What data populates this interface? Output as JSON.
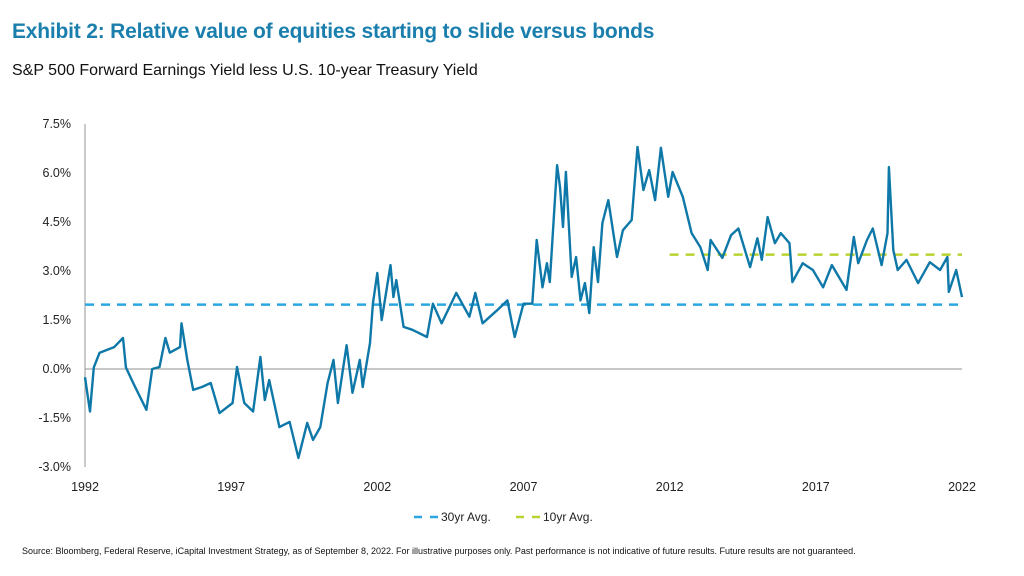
{
  "title": "Exhibit 2: Relative value of equities starting to slide versus bonds",
  "subtitle": "S&P 500 Forward Earnings Yield less U.S. 10-year Treasury Yield",
  "source": "Source: Bloomberg, Federal Reserve, iCapital Investment Strategy, as of September 8, 2022. For illustrative purposes only. Past performance is not indicative of future results. Future results are not guaranteed.",
  "chart_data": {
    "type": "line",
    "title": "S&P 500 Forward Earnings Yield less U.S. 10-year Treasury Yield",
    "xlim": [
      1992,
      2022
    ],
    "ylim": [
      -3.0,
      7.5
    ],
    "x_ticks": [
      "1992",
      "1997",
      "2002",
      "2007",
      "2012",
      "2017",
      "2022"
    ],
    "y_ticks": [
      "-3.0%",
      "-1.5%",
      "0.0%",
      "1.5%",
      "3.0%",
      "4.5%",
      "6.0%",
      "7.5%"
    ],
    "grid": false,
    "legend": "bottom",
    "colors": {
      "series": "#0e78a8",
      "avg30": "#2ba6df",
      "avg10": "#b8d432",
      "zero_line": "#a6a6a6"
    },
    "series": [
      {
        "x": [
          1992.0,
          1992.17,
          1992.3,
          1992.5,
          1993.0,
          1993.3,
          1993.4,
          1993.65,
          1994.1,
          1994.3,
          1994.55,
          1994.75,
          1994.9,
          1995.25,
          1995.3,
          1995.5,
          1995.7,
          1996.0,
          1996.3,
          1996.6,
          1997.05,
          1997.2,
          1997.45,
          1997.75,
          1998.0,
          1998.15,
          1998.3,
          1998.65,
          1999.0,
          1999.3,
          1999.6,
          1999.8,
          2000.05,
          2000.3,
          2000.5,
          2000.65,
          2000.95,
          2001.15,
          2001.4,
          2001.5,
          2001.75,
          2001.85,
          2002.0,
          2002.15,
          2002.45,
          2002.55,
          2002.65,
          2002.9,
          2003.2,
          2003.7,
          2003.9,
          2004.2,
          2004.7,
          2005.15,
          2005.35,
          2005.6,
          2006.1,
          2006.45,
          2006.7,
          2007.0,
          2007.3,
          2007.45,
          2007.65,
          2007.8,
          2007.9,
          2008.08,
          2008.15,
          2008.25,
          2008.35,
          2008.45,
          2008.65,
          2008.8,
          2008.95,
          2009.1,
          2009.25,
          2009.4,
          2009.55,
          2009.7,
          2009.9,
          2010.2,
          2010.4,
          2010.7,
          2010.9,
          2011.1,
          2011.3,
          2011.5,
          2011.7,
          2011.95,
          2012.1,
          2012.45,
          2012.75,
          2013.05,
          2013.3,
          2013.4,
          2013.8,
          2014.1,
          2014.35,
          2014.75,
          2015.0,
          2015.15,
          2015.35,
          2015.6,
          2015.8,
          2016.1,
          2016.2,
          2016.55,
          2016.9,
          2017.25,
          2017.55,
          2018.05,
          2018.3,
          2018.45,
          2018.75,
          2018.95,
          2019.25,
          2019.45,
          2019.5,
          2019.65,
          2019.8,
          2020.1,
          2020.5,
          2020.9,
          2021.25,
          2021.5,
          2021.55,
          2021.8,
          2022.0
        ],
        "y": [
          -0.25,
          -1.3,
          0.05,
          0.5,
          0.67,
          0.95,
          0.05,
          -0.43,
          -1.25,
          0.0,
          0.06,
          0.95,
          0.5,
          0.67,
          1.4,
          0.28,
          -0.64,
          -0.55,
          -0.43,
          -1.35,
          -1.04,
          0.06,
          -1.04,
          -1.3,
          0.37,
          -0.95,
          -0.34,
          -1.78,
          -1.62,
          -2.72,
          -1.65,
          -2.17,
          -1.78,
          -0.43,
          0.28,
          -1.04,
          0.73,
          -0.73,
          0.28,
          -0.55,
          0.8,
          2.0,
          2.94,
          1.5,
          3.18,
          2.2,
          2.72,
          1.29,
          1.2,
          0.98,
          2.0,
          1.4,
          2.33,
          1.6,
          2.33,
          1.4,
          1.8,
          2.1,
          0.98,
          2.0,
          2.0,
          3.95,
          2.5,
          3.24,
          2.66,
          5.27,
          6.24,
          5.57,
          4.35,
          6.03,
          2.82,
          3.43,
          2.1,
          2.63,
          1.71,
          3.73,
          2.66,
          4.47,
          5.17,
          3.43,
          4.25,
          4.56,
          6.8,
          5.48,
          6.09,
          5.17,
          6.77,
          5.27,
          6.03,
          5.27,
          4.16,
          3.73,
          3.03,
          3.95,
          3.4,
          4.1,
          4.3,
          3.12,
          4.0,
          3.34,
          4.65,
          3.85,
          4.16,
          3.85,
          2.66,
          3.24,
          3.03,
          2.5,
          3.18,
          2.42,
          4.04,
          3.24,
          3.95,
          4.3,
          3.18,
          4.16,
          6.18,
          3.64,
          3.03,
          3.34,
          2.63,
          3.27,
          3.03,
          3.43,
          2.36,
          3.03,
          2.2
        ]
      },
      {
        "name": "30yr Avg.",
        "style": "dashed",
        "x": [
          1992,
          2022
        ],
        "y": [
          1.97,
          1.97
        ]
      },
      {
        "name": "10yr Avg.",
        "style": "dashed",
        "x": [
          2012,
          2022
        ],
        "y": [
          3.5,
          3.5
        ]
      }
    ]
  }
}
